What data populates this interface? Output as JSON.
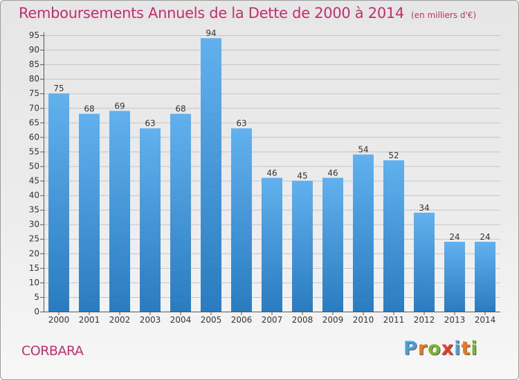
{
  "chart_data": {
    "type": "bar",
    "title": "Remboursements Annuels de la Dette de 2000 à 2014",
    "subtitle": "(en milliers d'€)",
    "categories": [
      "2000",
      "2001",
      "2002",
      "2003",
      "2004",
      "2005",
      "2006",
      "2007",
      "2008",
      "2009",
      "2010",
      "2011",
      "2012",
      "2013",
      "2014"
    ],
    "values": [
      75,
      68,
      69,
      63,
      68,
      94,
      63,
      46,
      45,
      46,
      54,
      52,
      34,
      24,
      24
    ],
    "ylim": [
      0,
      95
    ],
    "yticks": [
      0,
      5,
      10,
      15,
      20,
      25,
      30,
      35,
      40,
      45,
      50,
      55,
      60,
      65,
      70,
      75,
      80,
      85,
      90,
      95
    ],
    "grid": true,
    "xlabel": "",
    "ylabel": "",
    "bar_color_top": "#62b1ee",
    "bar_color_bottom": "#2a7cc0",
    "title_color": "#c22e6b"
  },
  "footer": {
    "commune": "CORBARA",
    "logo_text": "Proxiti",
    "logo_letter_colors": [
      "#4a9fd8",
      "#e87a1d",
      "#7ab531",
      "#e53a2c",
      "#4a9fd8",
      "#e87a1d",
      "#7ab531"
    ]
  }
}
